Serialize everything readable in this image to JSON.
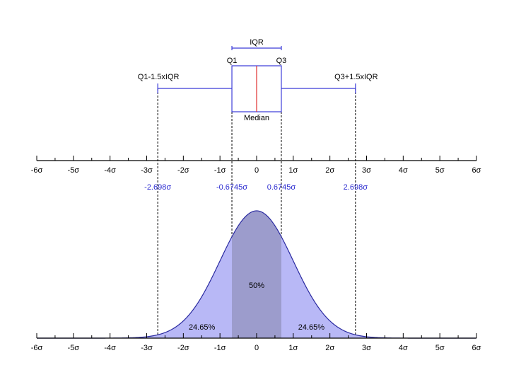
{
  "chart_data": {
    "type": "diagram",
    "title": "",
    "x_range": [
      -6,
      6
    ],
    "sigma_ticks": [
      -6,
      -5,
      -4,
      -3,
      -2,
      -1,
      0,
      1,
      2,
      3,
      4,
      5,
      6
    ],
    "sigma_tick_labels": [
      "-6σ",
      "-5σ",
      "-4σ",
      "-3σ",
      "-2σ",
      "-1σ",
      "0",
      "1σ",
      "2σ",
      "3σ",
      "4σ",
      "5σ",
      "6σ"
    ],
    "boxplot": {
      "q1": -0.6745,
      "median": 0,
      "q3": 0.6745,
      "whisker_low": -2.698,
      "whisker_high": 2.698,
      "iqr_label": "IQR",
      "q1_label": "Q1",
      "q3_label": "Q3",
      "median_label": "Median",
      "whisker_low_label": "Q1-1.5xIQR",
      "whisker_high_label": "Q3+1.5xIQR"
    },
    "marker_values": [
      -2.698,
      -0.6745,
      0.6745,
      2.698
    ],
    "marker_labels": [
      "-2.698σ",
      "-0.6745σ",
      "0.6745σ",
      "2.698σ"
    ],
    "density": {
      "distribution": "normal",
      "mean": 0,
      "sd": 1,
      "regions": [
        {
          "from": -2.698,
          "to": -0.6745,
          "label": "24.65%"
        },
        {
          "from": -0.6745,
          "to": 0.6745,
          "label": "50%"
        },
        {
          "from": 0.6745,
          "to": 2.698,
          "label": "24.65%"
        }
      ]
    },
    "colors": {
      "box_line": "#3a3ad8",
      "median_line": "#e03030",
      "curve_line": "#2a2aa0",
      "outer_fill": "#b8b8f6",
      "iqr_fill": "#9c9ccc",
      "marker_text": "#2c2cd0",
      "axis": "#000000"
    }
  }
}
